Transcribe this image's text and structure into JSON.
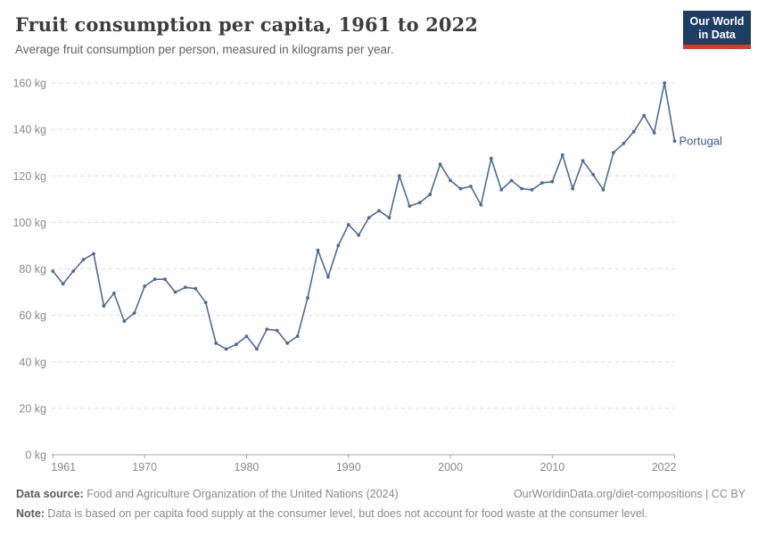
{
  "header": {
    "title": "Fruit consumption per capita, 1961 to 2022",
    "subtitle": "Average fruit consumption per person, measured in kilograms per year."
  },
  "logo": {
    "line1": "Our World",
    "line2": "in Data"
  },
  "footer": {
    "source_label": "Data source:",
    "source_text": " Food and Agriculture Organization of the United Nations (2024)",
    "link_text": "OurWorldinData.org/diet-compositions | CC BY",
    "note_label": "Note:",
    "note_text": " Data is based on per capita food supply at the consumer level, but does not account for food waste at the consumer level."
  },
  "chart_data": {
    "type": "line",
    "title": "Fruit consumption per capita, 1961 to 2022",
    "xlabel": "",
    "ylabel": "",
    "xlim": [
      1961,
      2022
    ],
    "ylim": [
      0,
      160
    ],
    "x_ticks": [
      1961,
      1970,
      1980,
      1990,
      2000,
      2010,
      2022
    ],
    "y_ticks": [
      0,
      20,
      40,
      60,
      80,
      100,
      120,
      140,
      160
    ],
    "y_tick_suffix": " kg",
    "grid": "horizontal-dashed",
    "legend_position": "end-of-line-label",
    "end_label": "Portugal",
    "line_color": "#4C6A9C",
    "end_label_color": "#3D5A8F",
    "axis_text_color": "#8a8a8a",
    "grid_color": "#dedede",
    "axis_line_color": "#a5a5a5",
    "series": [
      {
        "name": "Portugal",
        "x": [
          1961,
          1962,
          1963,
          1964,
          1965,
          1966,
          1967,
          1968,
          1969,
          1970,
          1971,
          1972,
          1973,
          1974,
          1975,
          1976,
          1977,
          1978,
          1979,
          1980,
          1981,
          1982,
          1983,
          1984,
          1985,
          1986,
          1987,
          1988,
          1989,
          1990,
          1991,
          1992,
          1993,
          1994,
          1995,
          1996,
          1997,
          1998,
          1999,
          2000,
          2001,
          2002,
          2003,
          2004,
          2005,
          2006,
          2007,
          2008,
          2009,
          2010,
          2011,
          2012,
          2013,
          2014,
          2015,
          2016,
          2017,
          2018,
          2019,
          2020,
          2021,
          2022
        ],
        "values": [
          79,
          73.5,
          79,
          84,
          86.5,
          64,
          69.5,
          57.5,
          61,
          72.5,
          75.5,
          75.5,
          70,
          72,
          71.5,
          65.5,
          48,
          45.5,
          47.5,
          51,
          45.5,
          54,
          53.5,
          48,
          51,
          67.5,
          88,
          76.5,
          90,
          99,
          94.5,
          102,
          105,
          102,
          120,
          107,
          108.5,
          112,
          125,
          118,
          114.5,
          115.5,
          107.5,
          127.5,
          114,
          118,
          114.5,
          114,
          117,
          117.5,
          129,
          114.5,
          126.5,
          120.5,
          114,
          130,
          134,
          139,
          146,
          138.5,
          160,
          135
        ]
      }
    ]
  }
}
